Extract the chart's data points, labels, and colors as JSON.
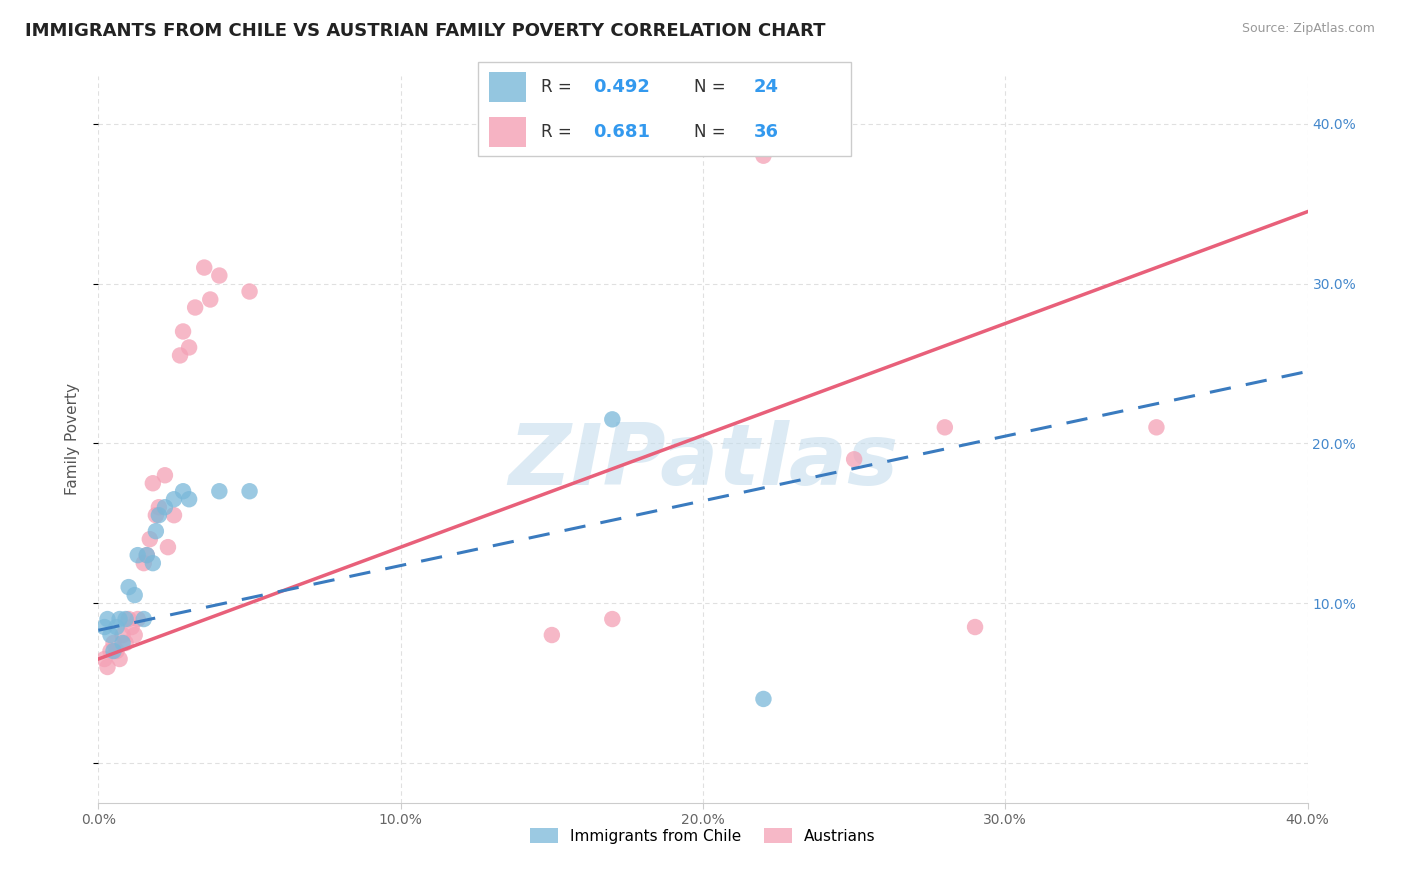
{
  "title": "IMMIGRANTS FROM CHILE VS AUSTRIAN FAMILY POVERTY CORRELATION CHART",
  "source": "Source: ZipAtlas.com",
  "ylabel": "Family Poverty",
  "y_ticks": [
    0.0,
    0.1,
    0.2,
    0.3,
    0.4
  ],
  "y_tick_labels": [
    "",
    "10.0%",
    "20.0%",
    "30.0%",
    "40.0%"
  ],
  "x_ticks": [
    0.0,
    0.1,
    0.2,
    0.3,
    0.4
  ],
  "x_tick_labels": [
    "0.0%",
    "10.0%",
    "20.0%",
    "30.0%",
    "40.0%"
  ],
  "x_range": [
    0.0,
    0.4
  ],
  "y_range": [
    -0.025,
    0.43
  ],
  "chile_color": "#7ab8d9",
  "austria_color": "#f4a0b5",
  "chile_line_color": "#3a7bbf",
  "austria_line_color": "#e8607a",
  "background_color": "#ffffff",
  "grid_color": "#e0e0e0",
  "grid_dash": [
    4,
    3
  ],
  "watermark_text": "ZIPatlas",
  "watermark_color": "#c5dded",
  "watermark_alpha": 0.6,
  "chile_scatter": [
    [
      0.002,
      0.085
    ],
    [
      0.003,
      0.09
    ],
    [
      0.004,
      0.08
    ],
    [
      0.005,
      0.07
    ],
    [
      0.006,
      0.085
    ],
    [
      0.007,
      0.09
    ],
    [
      0.008,
      0.075
    ],
    [
      0.009,
      0.09
    ],
    [
      0.01,
      0.11
    ],
    [
      0.012,
      0.105
    ],
    [
      0.013,
      0.13
    ],
    [
      0.015,
      0.09
    ],
    [
      0.016,
      0.13
    ],
    [
      0.018,
      0.125
    ],
    [
      0.019,
      0.145
    ],
    [
      0.02,
      0.155
    ],
    [
      0.022,
      0.16
    ],
    [
      0.025,
      0.165
    ],
    [
      0.028,
      0.17
    ],
    [
      0.03,
      0.165
    ],
    [
      0.04,
      0.17
    ],
    [
      0.05,
      0.17
    ],
    [
      0.17,
      0.215
    ],
    [
      0.22,
      0.04
    ]
  ],
  "austria_scatter": [
    [
      0.002,
      0.065
    ],
    [
      0.003,
      0.06
    ],
    [
      0.004,
      0.07
    ],
    [
      0.005,
      0.075
    ],
    [
      0.006,
      0.07
    ],
    [
      0.007,
      0.065
    ],
    [
      0.008,
      0.08
    ],
    [
      0.009,
      0.075
    ],
    [
      0.01,
      0.09
    ],
    [
      0.011,
      0.085
    ],
    [
      0.012,
      0.08
    ],
    [
      0.013,
      0.09
    ],
    [
      0.015,
      0.125
    ],
    [
      0.016,
      0.13
    ],
    [
      0.017,
      0.14
    ],
    [
      0.018,
      0.175
    ],
    [
      0.019,
      0.155
    ],
    [
      0.02,
      0.16
    ],
    [
      0.022,
      0.18
    ],
    [
      0.023,
      0.135
    ],
    [
      0.025,
      0.155
    ],
    [
      0.027,
      0.255
    ],
    [
      0.028,
      0.27
    ],
    [
      0.03,
      0.26
    ],
    [
      0.032,
      0.285
    ],
    [
      0.035,
      0.31
    ],
    [
      0.037,
      0.29
    ],
    [
      0.04,
      0.305
    ],
    [
      0.05,
      0.295
    ],
    [
      0.15,
      0.08
    ],
    [
      0.17,
      0.09
    ],
    [
      0.22,
      0.38
    ],
    [
      0.25,
      0.19
    ],
    [
      0.28,
      0.21
    ],
    [
      0.29,
      0.085
    ],
    [
      0.35,
      0.21
    ]
  ],
  "chile_line": [
    [
      0.0,
      0.083
    ],
    [
      0.4,
      0.245
    ]
  ],
  "austria_line": [
    [
      0.0,
      0.065
    ],
    [
      0.4,
      0.345
    ]
  ]
}
